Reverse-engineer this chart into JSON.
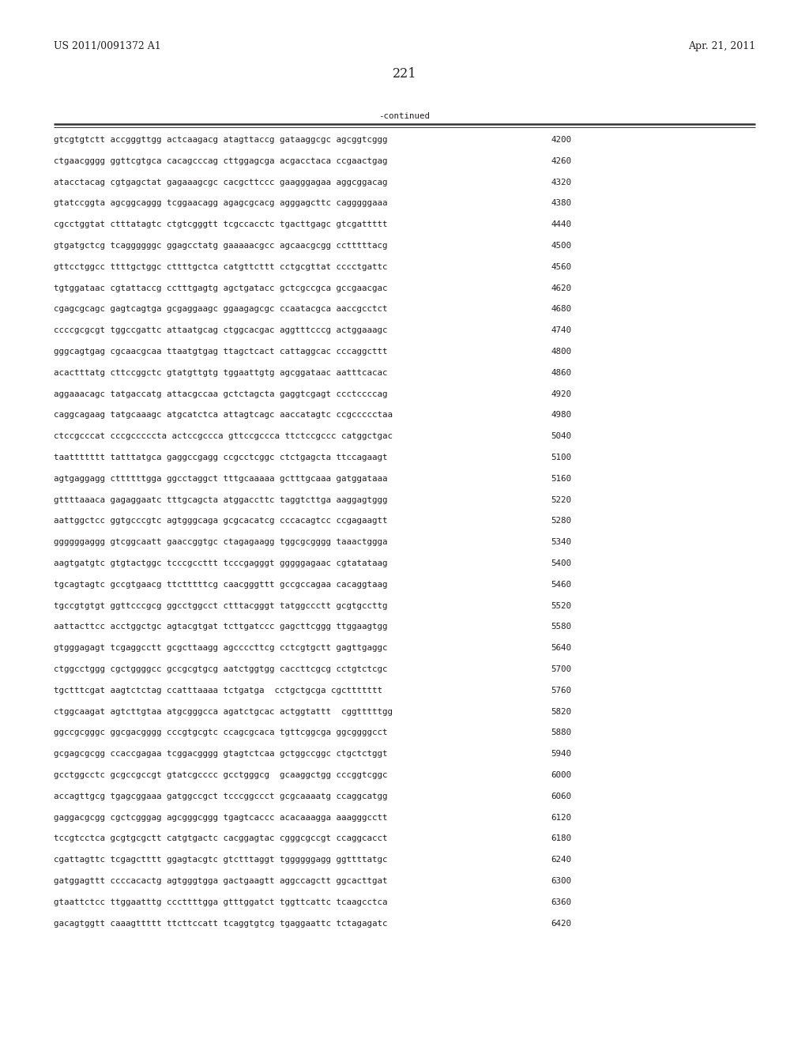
{
  "header_left": "US 2011/0091372 A1",
  "header_right": "Apr. 21, 2011",
  "page_number": "221",
  "continued_label": "-continued",
  "background_color": "#ffffff",
  "text_color": "#231f20",
  "font_size_header": 9.0,
  "font_size_body": 7.8,
  "font_size_page": 11.5,
  "sequence_lines": [
    {
      "seq": "gtcgtgtctt accgggttgg actcaagacg atagttaccg gataaggcgc agcggtcggg",
      "num": "4200"
    },
    {
      "seq": "ctgaacgggg ggttcgtgca cacagcccag cttggagcga acgacctaca ccgaactgag",
      "num": "4260"
    },
    {
      "seq": "atacctacag cgtgagctat gagaaagcgc cacgcttccc gaagggagaa aggcggacag",
      "num": "4320"
    },
    {
      "seq": "gtatccggta agcggcaggg tcggaacagg agagcgcacg agggagcttc cagggggaaa",
      "num": "4380"
    },
    {
      "seq": "cgcctggtat ctttatagtc ctgtcgggtt tcgccacctc tgacttgagc gtcgattttt",
      "num": "4440"
    },
    {
      "seq": "gtgatgctcg tcaggggggc ggagcctatg gaaaaacgcc agcaacgcgg cctttttacg",
      "num": "4500"
    },
    {
      "seq": "gttcctggcc ttttgctggc cttttgctca catgttcttt cctgcgttat cccctgattc",
      "num": "4560"
    },
    {
      "seq": "tgtggataac cgtattaccg cctttgagtg agctgatacc gctcgccgca gccgaacgac",
      "num": "4620"
    },
    {
      "seq": "cgagcgcagc gagtcagtga gcgaggaagc ggaagagcgc ccaatacgca aaccgcctct",
      "num": "4680"
    },
    {
      "seq": "ccccgcgcgt tggccgattc attaatgcag ctggcacgac aggtttcccg actggaaagc",
      "num": "4740"
    },
    {
      "seq": "gggcagtgag cgcaacgcaa ttaatgtgag ttagctcact cattaggcac cccaggcttt",
      "num": "4800"
    },
    {
      "seq": "acactttatg cttccggctc gtatgttgtg tggaattgtg agcggataac aatttcacac",
      "num": "4860"
    },
    {
      "seq": "aggaaacagc tatgaccatg attacgccaa gctctagcta gaggtcgagt ccctccccag",
      "num": "4920"
    },
    {
      "seq": "caggcagaag tatgcaaagc atgcatctca attagtcagc aaccatagtc ccgccccctaa",
      "num": "4980"
    },
    {
      "seq": "ctccgcccat cccgcccccta actccgccca gttccgccca ttctccgccc catggctgac",
      "num": "5040"
    },
    {
      "seq": "taattttttt tatttatgca gaggccgagg ccgcctcggc ctctgagcta ttccagaagt",
      "num": "5100"
    },
    {
      "seq": "agtgaggagg cttttttgga ggcctaggct tttgcaaaaa gctttgcaaa gatggataaa",
      "num": "5160"
    },
    {
      "seq": "gttttaaaca gagaggaatc tttgcagcta atggaccttc taggtcttga aaggagtggg",
      "num": "5220"
    },
    {
      "seq": "aattggctcc ggtgcccgtc agtgggcaga gcgcacatcg cccacagtcc ccgagaagtt",
      "num": "5280"
    },
    {
      "seq": "ggggggaggg gtcggcaatt gaaccggtgc ctagagaagg tggcgcgggg taaactggga",
      "num": "5340"
    },
    {
      "seq": "aagtgatgtc gtgtactggc tcccgccttt tcccgagggt gggggagaac cgtatataag",
      "num": "5400"
    },
    {
      "seq": "tgcagtagtc gccgtgaacg ttctttttcg caacgggttt gccgccagaa cacaggtaag",
      "num": "5460"
    },
    {
      "seq": "tgccgtgtgt ggttcccgcg ggcctggcct ctttacgggt tatggccctt gcgtgccttg",
      "num": "5520"
    },
    {
      "seq": "aattacttcc acctggctgc agtacgtgat tcttgatccc gagcttcggg ttggaagtgg",
      "num": "5580"
    },
    {
      "seq": "gtgggagagt tcgaggcctt gcgcttaagg agccccttcg cctcgtgctt gagttgaggc",
      "num": "5640"
    },
    {
      "seq": "ctggcctggg cgctggggcc gccgcgtgcg aatctggtgg caccttcgcg cctgtctcgc",
      "num": "5700"
    },
    {
      "seq": "tgctttcgat aagtctctag ccatttaaaa tctgatga  cctgctgcga cgcttttttt",
      "num": "5760"
    },
    {
      "seq": "ctggcaagat agtcttgtaa atgcgggcca agatctgcac actggtattt  cggtttttgg",
      "num": "5820"
    },
    {
      "seq": "ggccgcgggc ggcgacgggg cccgtgcgtc ccagcgcaca tgttcggcga ggcggggcct",
      "num": "5880"
    },
    {
      "seq": "gcgagcgcgg ccaccgagaa tcggacgggg gtagtctcaa gctggccggc ctgctctggt",
      "num": "5940"
    },
    {
      "seq": "gcctggcctc gcgccgccgt gtatcgcccc gcctgggcg  gcaaggctgg cccggtcggc",
      "num": "6000"
    },
    {
      "seq": "accagttgcg tgagcggaaa gatggccgct tcccggccct gcgcaaaatg ccaggcatgg",
      "num": "6060"
    },
    {
      "seq": "gaggacgcgg cgctcgggag agcgggcggg tgagtcaccc acacaaagga aaagggcctt",
      "num": "6120"
    },
    {
      "seq": "tccgtcctca gcgtgcgctt catgtgactc cacggagtac cgggcgccgt ccaggcacct",
      "num": "6180"
    },
    {
      "seq": "cgattagttc tcgagctttt ggagtacgtc gtctttaggt tggggggagg ggttttatgc",
      "num": "6240"
    },
    {
      "seq": "gatggagttt ccccacactg agtgggtgga gactgaagtt aggccagctt ggcacttgat",
      "num": "6300"
    },
    {
      "seq": "gtaattctcc ttggaatttg cccttttgga gtttggatct tggttcattc tcaagcctca",
      "num": "6360"
    },
    {
      "seq": "gacagtggtt caaagttttt ttcttccatt tcaggtgtcg tgaggaattc tctagagatc",
      "num": "6420"
    }
  ]
}
